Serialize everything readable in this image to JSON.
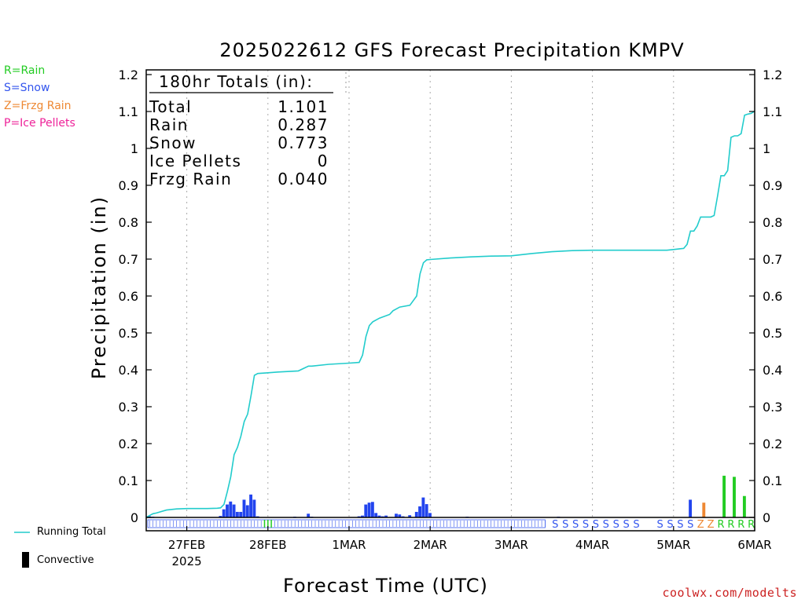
{
  "chart_data": {
    "type": "bar",
    "title": "2025022612 GFS Forecast Precipitation KMPV",
    "xlabel": "Forecast Time (UTC)",
    "ylabel": "Precipitation (in)",
    "ylim": [
      0,
      1.2
    ],
    "yticks": [
      "0",
      "0.1",
      "0.2",
      "0.3",
      "0.4",
      "0.5",
      "0.6",
      "0.7",
      "0.8",
      "0.9",
      "1",
      "1.1",
      "1.2"
    ],
    "forecast_hours": 180,
    "x_ticks": [
      {
        "label": "27FEB",
        "sub": "2025",
        "hour": 12
      },
      {
        "label": "28FEB",
        "sub": "",
        "hour": 36
      },
      {
        "label": "1MAR",
        "sub": "",
        "hour": 60
      },
      {
        "label": "2MAR",
        "sub": "",
        "hour": 84
      },
      {
        "label": "3MAR",
        "sub": "",
        "hour": 108
      },
      {
        "label": "4MAR",
        "sub": "",
        "hour": 132
      },
      {
        "label": "5MAR",
        "sub": "",
        "hour": 156
      },
      {
        "label": "6MAR",
        "sub": "",
        "hour": 180
      }
    ],
    "totals": {
      "heading": "180hr Totals (in):",
      "rows": [
        {
          "label": "Total",
          "value": "1.101"
        },
        {
          "label": "Rain",
          "value": "0.287"
        },
        {
          "label": "Snow",
          "value": "0.773"
        },
        {
          "label": "Ice Pellets",
          "value": "0"
        },
        {
          "label": "Frzg Rain",
          "value": "0.040"
        }
      ]
    },
    "legend_keys": [
      "R=Rain",
      "S=Snow",
      "Z=Frzg Rain",
      "P=Ice Pellets"
    ],
    "series_legend": {
      "running_total": "Running Total",
      "convective": "Convective"
    },
    "colors": {
      "snow": "#2244ee",
      "rain": "#22cc22",
      "frzg": "#ee8833",
      "ice": "#ee2299",
      "running_total": "#22cccc"
    },
    "bars": [
      {
        "hour": 1,
        "value": 0.003,
        "type": "snow"
      },
      {
        "hour": 2,
        "value": 0.002,
        "type": "snow"
      },
      {
        "hour": 22,
        "value": 0.004,
        "type": "snow"
      },
      {
        "hour": 23,
        "value": 0.022,
        "type": "snow"
      },
      {
        "hour": 24,
        "value": 0.035,
        "type": "snow"
      },
      {
        "hour": 25,
        "value": 0.043,
        "type": "snow"
      },
      {
        "hour": 26,
        "value": 0.035,
        "type": "snow"
      },
      {
        "hour": 27,
        "value": 0.015,
        "type": "snow"
      },
      {
        "hour": 28,
        "value": 0.015,
        "type": "snow"
      },
      {
        "hour": 29,
        "value": 0.048,
        "type": "snow"
      },
      {
        "hour": 30,
        "value": 0.033,
        "type": "snow"
      },
      {
        "hour": 31,
        "value": 0.062,
        "type": "snow"
      },
      {
        "hour": 32,
        "value": 0.048,
        "type": "snow"
      },
      {
        "hour": 33,
        "value": 0.003,
        "type": "snow"
      },
      {
        "hour": 44,
        "value": 0.002,
        "type": "snow"
      },
      {
        "hour": 48,
        "value": 0.01,
        "type": "snow"
      },
      {
        "hour": 49,
        "value": 0.002,
        "type": "snow"
      },
      {
        "hour": 63,
        "value": 0.003,
        "type": "snow"
      },
      {
        "hour": 64,
        "value": 0.005,
        "type": "snow"
      },
      {
        "hour": 65,
        "value": 0.035,
        "type": "snow"
      },
      {
        "hour": 66,
        "value": 0.04,
        "type": "snow"
      },
      {
        "hour": 67,
        "value": 0.042,
        "type": "snow"
      },
      {
        "hour": 68,
        "value": 0.012,
        "type": "snow"
      },
      {
        "hour": 69,
        "value": 0.005,
        "type": "snow"
      },
      {
        "hour": 70,
        "value": 0.003,
        "type": "snow"
      },
      {
        "hour": 71,
        "value": 0.005,
        "type": "snow"
      },
      {
        "hour": 74,
        "value": 0.01,
        "type": "snow"
      },
      {
        "hour": 75,
        "value": 0.008,
        "type": "snow"
      },
      {
        "hour": 76,
        "value": 0.003,
        "type": "snow"
      },
      {
        "hour": 78,
        "value": 0.006,
        "type": "snow"
      },
      {
        "hour": 80,
        "value": 0.015,
        "type": "snow"
      },
      {
        "hour": 81,
        "value": 0.03,
        "type": "snow"
      },
      {
        "hour": 82,
        "value": 0.054,
        "type": "snow"
      },
      {
        "hour": 83,
        "value": 0.036,
        "type": "snow"
      },
      {
        "hour": 84,
        "value": 0.012,
        "type": "snow"
      },
      {
        "hour": 95,
        "value": 0.002,
        "type": "snow"
      },
      {
        "hour": 122,
        "value": 0.002,
        "type": "snow"
      },
      {
        "hour": 161,
        "value": 0.048,
        "type": "snow"
      },
      {
        "hour": 165,
        "value": 0.04,
        "type": "frzg"
      },
      {
        "hour": 171,
        "value": 0.113,
        "type": "rain"
      },
      {
        "hour": 174,
        "value": 0.11,
        "type": "rain"
      },
      {
        "hour": 177,
        "value": 0.058,
        "type": "rain"
      }
    ],
    "running_total": {
      "x": [
        0,
        1,
        2,
        3,
        6,
        9,
        12,
        18,
        21,
        22,
        23,
        24,
        25,
        26,
        27,
        28,
        29,
        30,
        31,
        32,
        33,
        36,
        39,
        45,
        48,
        49,
        54,
        60,
        63,
        64,
        65,
        66,
        67,
        69,
        72,
        73,
        74,
        75,
        78,
        80,
        81,
        82,
        83,
        84,
        90,
        96,
        102,
        108,
        114,
        120,
        126,
        132,
        138,
        144,
        150,
        154,
        156,
        158,
        159,
        160,
        161,
        162,
        163,
        164,
        165,
        167,
        168,
        169,
        170,
        171,
        172,
        173,
        174,
        175,
        176,
        177,
        178,
        179,
        180
      ],
      "y": [
        0.0,
        0.005,
        0.01,
        0.012,
        0.02,
        0.023,
        0.024,
        0.024,
        0.025,
        0.026,
        0.035,
        0.07,
        0.11,
        0.17,
        0.19,
        0.22,
        0.26,
        0.28,
        0.33,
        0.385,
        0.39,
        0.392,
        0.394,
        0.397,
        0.41,
        0.41,
        0.415,
        0.418,
        0.42,
        0.44,
        0.49,
        0.52,
        0.53,
        0.54,
        0.55,
        0.56,
        0.565,
        0.57,
        0.575,
        0.6,
        0.66,
        0.69,
        0.698,
        0.699,
        0.703,
        0.706,
        0.708,
        0.709,
        0.715,
        0.72,
        0.723,
        0.724,
        0.724,
        0.724,
        0.724,
        0.724,
        0.726,
        0.728,
        0.729,
        0.74,
        0.776,
        0.776,
        0.79,
        0.814,
        0.814,
        0.814,
        0.818,
        0.87,
        0.926,
        0.926,
        0.94,
        1.03,
        1.034,
        1.034,
        1.04,
        1.09,
        1.093,
        1.095,
        1.101
      ]
    },
    "ptype_strip": {
      "dense_until_hour": 118,
      "spaced": [
        {
          "hour": 121,
          "t": "S"
        },
        {
          "hour": 124,
          "t": "S"
        },
        {
          "hour": 127,
          "t": "S"
        },
        {
          "hour": 130,
          "t": "S"
        },
        {
          "hour": 133,
          "t": "S"
        },
        {
          "hour": 136,
          "t": "S"
        },
        {
          "hour": 139,
          "t": "S"
        },
        {
          "hour": 142,
          "t": "S"
        },
        {
          "hour": 145,
          "t": "S"
        },
        {
          "hour": 152,
          "t": "S"
        },
        {
          "hour": 155,
          "t": "S"
        },
        {
          "hour": 158,
          "t": "S"
        },
        {
          "hour": 161,
          "t": "S"
        },
        {
          "hour": 164,
          "t": "Z"
        },
        {
          "hour": 167,
          "t": "Z"
        },
        {
          "hour": 170,
          "t": "R"
        },
        {
          "hour": 173,
          "t": "R"
        },
        {
          "hour": 176,
          "t": "R"
        },
        {
          "hour": 179,
          "t": "R"
        }
      ],
      "rain_marks_hours": [
        35,
        36,
        37
      ]
    },
    "credit": "coolwx.com/modelts"
  }
}
